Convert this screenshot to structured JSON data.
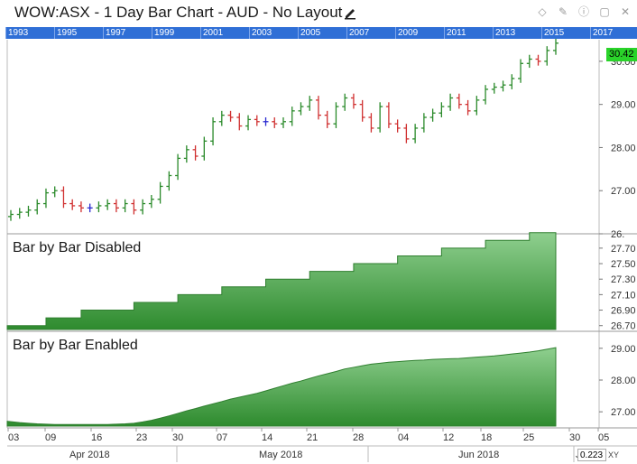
{
  "window": {
    "title": "WOW:ASX - 1 Day Bar Chart - AUD - No Layout",
    "icons": [
      "diamond-icon",
      "pin-icon",
      "info-icon",
      "minimize-icon",
      "close-icon"
    ],
    "icon_glyphs": [
      "◇",
      "✎",
      "ⓘ",
      "▢",
      "✕"
    ]
  },
  "year_navigator": {
    "years": [
      "1993",
      "1995",
      "1997",
      "1999",
      "2001",
      "2003",
      "2005",
      "2007",
      "2009",
      "2011",
      "2013",
      "2015",
      "2017"
    ]
  },
  "price_panel": {
    "last_price": "30.42",
    "y_ticks": [
      "30.00",
      "29.00",
      "28.00",
      "27.00",
      "26."
    ]
  },
  "panel_disabled": {
    "title": "Bar by Bar Disabled",
    "y_ticks": [
      "27.70",
      "27.50",
      "27.30",
      "27.10",
      "26.90",
      "26.70"
    ]
  },
  "panel_enabled": {
    "title": "Bar by Bar Enabled",
    "y_ticks": [
      "29.00",
      "28.00",
      "27.00"
    ]
  },
  "date_axis": {
    "days": [
      "03",
      "09",
      "16",
      "23",
      "30",
      "07",
      "14",
      "21",
      "28",
      "04",
      "12",
      "18",
      "25",
      "30",
      "05"
    ],
    "months": [
      "Apr 2018",
      "May 2018",
      "Jun 2018",
      "J"
    ]
  },
  "status": {
    "zoom_value": "0.223",
    "xy_label": "XY"
  },
  "colors": {
    "up": "#2a8a2a",
    "down": "#d03030",
    "neutral": "#2a2ad0",
    "area": "#3ca03c",
    "year_bar": "#2f6fd6",
    "badge": "#2ad32a"
  },
  "chart_data": [
    {
      "type": "ohlc",
      "title": "WOW:ASX - 1 Day Bar Chart - AUD",
      "x": [
        "2018-03-29",
        "2018-04-03",
        "2018-04-04",
        "2018-04-05",
        "2018-04-06",
        "2018-04-09",
        "2018-04-10",
        "2018-04-11",
        "2018-04-12",
        "2018-04-13",
        "2018-04-16",
        "2018-04-17",
        "2018-04-18",
        "2018-04-19",
        "2018-04-20",
        "2018-04-23",
        "2018-04-24",
        "2018-04-26",
        "2018-04-27",
        "2018-04-30",
        "2018-05-01",
        "2018-05-02",
        "2018-05-03",
        "2018-05-04",
        "2018-05-07",
        "2018-05-08",
        "2018-05-09",
        "2018-05-10",
        "2018-05-11",
        "2018-05-14",
        "2018-05-15",
        "2018-05-16",
        "2018-05-17",
        "2018-05-18",
        "2018-05-21",
        "2018-05-22",
        "2018-05-23",
        "2018-05-24",
        "2018-05-25",
        "2018-05-28",
        "2018-05-29",
        "2018-05-30",
        "2018-05-31",
        "2018-06-01",
        "2018-06-04",
        "2018-06-05",
        "2018-06-06",
        "2018-06-07",
        "2018-06-08",
        "2018-06-12",
        "2018-06-13",
        "2018-06-14",
        "2018-06-15",
        "2018-06-18",
        "2018-06-19",
        "2018-06-20",
        "2018-06-21",
        "2018-06-22",
        "2018-06-25",
        "2018-06-26",
        "2018-06-27",
        "2018-06-28",
        "2018-06-29"
      ],
      "close": [
        26.45,
        26.5,
        26.55,
        26.7,
        26.95,
        27.0,
        26.7,
        26.65,
        26.6,
        26.6,
        26.65,
        26.7,
        26.6,
        26.7,
        26.55,
        26.7,
        26.8,
        27.1,
        27.35,
        27.75,
        27.95,
        27.8,
        28.15,
        28.6,
        28.75,
        28.7,
        28.5,
        28.65,
        28.6,
        28.6,
        28.55,
        28.6,
        28.85,
        28.95,
        29.1,
        28.75,
        28.55,
        28.95,
        29.15,
        29.0,
        28.7,
        28.45,
        28.95,
        28.55,
        28.45,
        28.2,
        28.45,
        28.7,
        28.8,
        28.95,
        29.15,
        29.0,
        28.85,
        29.1,
        29.35,
        29.4,
        29.45,
        29.6,
        29.95,
        30.05,
        30.0,
        30.25,
        30.42
      ],
      "y_range": [
        26.0,
        30.5
      ]
    },
    {
      "type": "area",
      "title": "Bar by Bar Disabled",
      "x_range": [
        "2018-03-29",
        "2018-06-29"
      ],
      "values": [
        26.7,
        26.7,
        26.7,
        26.7,
        26.8,
        26.8,
        26.8,
        26.8,
        26.9,
        26.9,
        26.9,
        26.9,
        26.9,
        26.9,
        27.0,
        27.0,
        27.0,
        27.0,
        27.0,
        27.1,
        27.1,
        27.1,
        27.1,
        27.1,
        27.2,
        27.2,
        27.2,
        27.2,
        27.2,
        27.3,
        27.3,
        27.3,
        27.3,
        27.3,
        27.4,
        27.4,
        27.4,
        27.4,
        27.4,
        27.5,
        27.5,
        27.5,
        27.5,
        27.5,
        27.6,
        27.6,
        27.6,
        27.6,
        27.6,
        27.7,
        27.7,
        27.7,
        27.7,
        27.7,
        27.8,
        27.8,
        27.8,
        27.8,
        27.8,
        27.9,
        27.9,
        27.9,
        27.9
      ],
      "y_range": [
        26.65,
        27.85
      ]
    },
    {
      "type": "area",
      "title": "Bar by Bar Enabled",
      "x_range": [
        "2018-03-29",
        "2018-06-29"
      ],
      "values": [
        26.7,
        26.66,
        26.64,
        26.62,
        26.61,
        26.6,
        26.6,
        26.6,
        26.6,
        26.6,
        26.6,
        26.6,
        26.61,
        26.62,
        26.64,
        26.68,
        26.73,
        26.8,
        26.87,
        26.95,
        27.03,
        27.1,
        27.18,
        27.25,
        27.32,
        27.4,
        27.46,
        27.52,
        27.58,
        27.66,
        27.74,
        27.82,
        27.9,
        27.97,
        28.05,
        28.13,
        28.2,
        28.27,
        28.35,
        28.4,
        28.45,
        28.5,
        28.53,
        28.56,
        28.58,
        28.6,
        28.62,
        28.63,
        28.65,
        28.66,
        28.67,
        28.68,
        28.7,
        28.72,
        28.74,
        28.76,
        28.79,
        28.82,
        28.85,
        28.88,
        28.92,
        28.97,
        29.02
      ],
      "y_range": [
        26.55,
        29.45
      ]
    }
  ]
}
